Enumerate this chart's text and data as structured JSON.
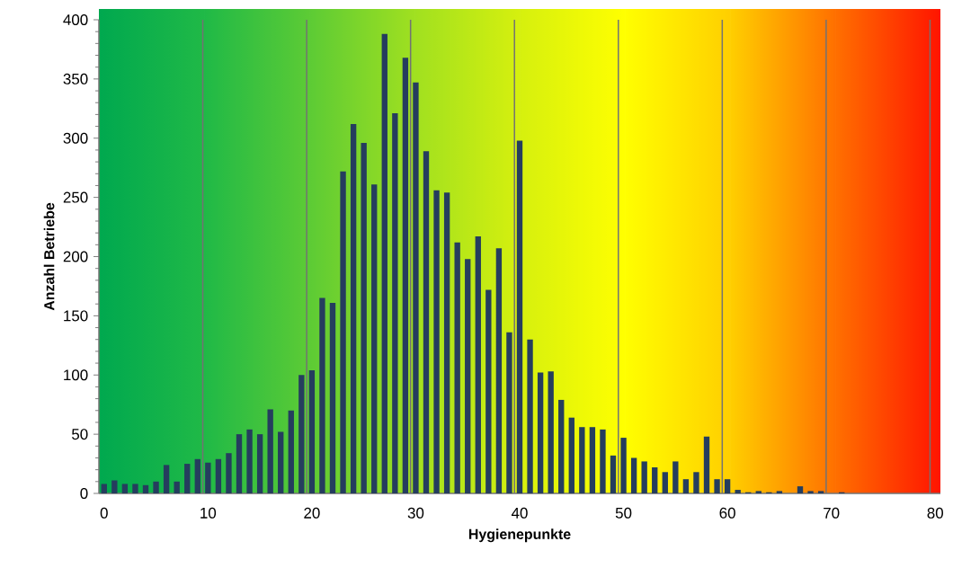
{
  "chart_data": {
    "type": "bar",
    "xlabel": "Hygienepunkte",
    "ylabel": "Anzahl Betriebe",
    "categories": [
      "0",
      null,
      null,
      null,
      null,
      null,
      null,
      null,
      null,
      null,
      "10",
      null,
      null,
      null,
      null,
      null,
      null,
      null,
      null,
      null,
      "20",
      null,
      null,
      null,
      null,
      null,
      null,
      null,
      null,
      null,
      "30",
      null,
      null,
      null,
      null,
      null,
      null,
      null,
      null,
      null,
      "40",
      null,
      null,
      null,
      null,
      null,
      null,
      null,
      null,
      null,
      "50",
      null,
      null,
      null,
      null,
      null,
      null,
      null,
      null,
      null,
      "60",
      null,
      null,
      null,
      null,
      null,
      null,
      null,
      null,
      null,
      "70",
      null,
      null,
      null,
      null,
      null,
      null,
      null,
      null,
      null,
      "80"
    ],
    "values": [
      8,
      11,
      8,
      8,
      7,
      10,
      24,
      10,
      25,
      29,
      26,
      29,
      34,
      50,
      54,
      50,
      71,
      52,
      70,
      100,
      104,
      165,
      161,
      272,
      312,
      296,
      261,
      388,
      321,
      368,
      347,
      289,
      256,
      254,
      212,
      198,
      217,
      172,
      207,
      136,
      298,
      130,
      102,
      103,
      79,
      64,
      56,
      56,
      54,
      32,
      47,
      30,
      27,
      22,
      18,
      27,
      12,
      18,
      48,
      12,
      12,
      3,
      1,
      2,
      1,
      2,
      0,
      6,
      2,
      2,
      0,
      1,
      0,
      0,
      0,
      0,
      0,
      0,
      0,
      0,
      0
    ],
    "color": "#253d5e",
    "ylim": [
      0,
      400
    ],
    "yticks": [
      0,
      50,
      100,
      150,
      200,
      250,
      300,
      350,
      400
    ],
    "grid": "x"
  }
}
